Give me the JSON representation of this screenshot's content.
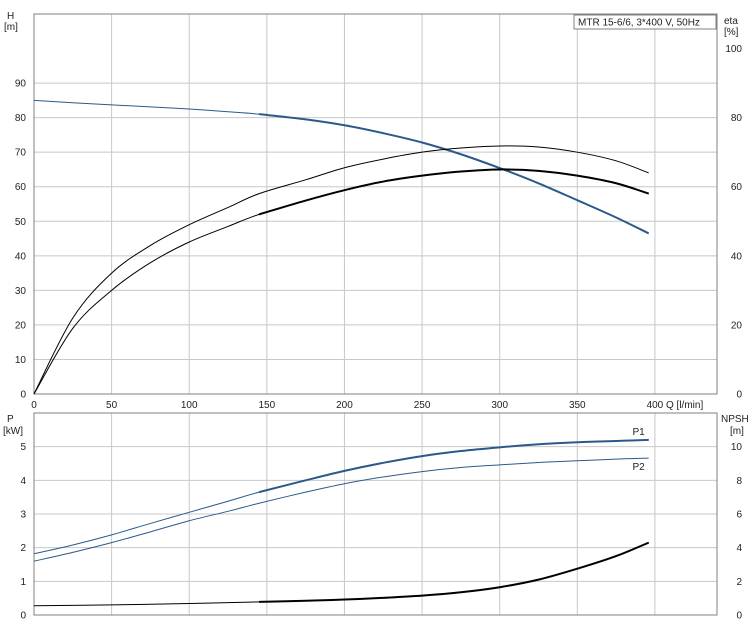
{
  "title_box": "MTR 15-6/6, 3*400 V, 50Hz",
  "colors": {
    "blue": "#2b5a8a",
    "black": "#000000",
    "grid": "#c8c8c8"
  },
  "chart_data": [
    {
      "type": "line",
      "name": "upper",
      "left_axis": {
        "label_line1": "H",
        "label_line2": "[m]",
        "ticks": [
          "0",
          "10",
          "20",
          "30",
          "40",
          "50",
          "60",
          "70",
          "80",
          "90"
        ],
        "range": [
          0,
          110
        ]
      },
      "right_axis": {
        "label_line1": "eta",
        "label_line2": "[%]",
        "ticks": [
          "0",
          "20",
          "40",
          "60",
          "80",
          "100"
        ],
        "range": [
          0,
          110
        ]
      },
      "x_axis": {
        "label": "Q [l/min]",
        "ticks": [
          "0",
          "50",
          "100",
          "150",
          "200",
          "250",
          "300",
          "350",
          "400"
        ],
        "range": [
          0,
          440
        ]
      },
      "series": [
        {
          "id": "H",
          "axis": "left",
          "color": "#2b5a8a",
          "x": [
            0,
            25,
            50,
            75,
            100,
            125,
            145,
            175,
            200,
            225,
            250,
            275,
            300,
            325,
            350,
            375,
            396
          ],
          "y": [
            85,
            84.3,
            83.7,
            83.1,
            82.5,
            81.7,
            81.0,
            79.5,
            77.8,
            75.5,
            72.8,
            69.4,
            65.4,
            61.0,
            56.1,
            51.1,
            46.5
          ],
          "bold_from": 145
        },
        {
          "id": "eta-upper",
          "axis": "right",
          "color": "#000000",
          "x": [
            0,
            25,
            50,
            75,
            100,
            125,
            145,
            175,
            200,
            225,
            250,
            275,
            300,
            325,
            350,
            375,
            396
          ],
          "y": [
            0,
            22,
            35,
            43,
            49,
            54,
            58,
            62,
            65.5,
            68,
            70,
            71.2,
            71.8,
            71.5,
            70,
            67.5,
            64
          ],
          "bold_from": 9999
        },
        {
          "id": "eta-lower",
          "axis": "right",
          "color": "#000000",
          "x": [
            0,
            25,
            50,
            75,
            100,
            125,
            145,
            175,
            200,
            225,
            250,
            275,
            300,
            325,
            350,
            375,
            396
          ],
          "y": [
            0,
            19,
            30,
            38,
            44,
            48.5,
            52,
            56,
            59,
            61.5,
            63.2,
            64.4,
            65,
            64.6,
            63.2,
            61,
            58
          ],
          "bold_from": 145
        }
      ]
    },
    {
      "type": "line",
      "name": "lower",
      "left_axis": {
        "label_line1": "P",
        "label_line2": "[kW]",
        "ticks": [
          "0",
          "1",
          "2",
          "3",
          "4",
          "5"
        ],
        "range": [
          0,
          6
        ]
      },
      "right_axis": {
        "label_line1": "NPSH",
        "label_line2": "[m]",
        "ticks": [
          "0",
          "2",
          "4",
          "6",
          "8",
          "10"
        ],
        "range": [
          0,
          12
        ]
      },
      "x_axis": {
        "ticks": [],
        "range": [
          0,
          440
        ]
      },
      "series": [
        {
          "id": "P1",
          "name": "P1",
          "axis": "left",
          "color": "#2b5a8a",
          "x": [
            0,
            25,
            50,
            75,
            100,
            125,
            145,
            175,
            200,
            225,
            250,
            275,
            300,
            325,
            350,
            375,
            396
          ],
          "y": [
            1.82,
            2.08,
            2.38,
            2.72,
            3.05,
            3.38,
            3.65,
            4.0,
            4.28,
            4.52,
            4.72,
            4.87,
            4.98,
            5.07,
            5.13,
            5.17,
            5.2
          ],
          "bold_from": 145
        },
        {
          "id": "P2",
          "name": "P2",
          "axis": "left",
          "color": "#2b5a8a",
          "x": [
            0,
            25,
            50,
            75,
            100,
            125,
            145,
            175,
            200,
            225,
            250,
            275,
            300,
            325,
            350,
            375,
            396
          ],
          "y": [
            1.6,
            1.86,
            2.15,
            2.47,
            2.8,
            3.08,
            3.32,
            3.65,
            3.9,
            4.1,
            4.26,
            4.38,
            4.46,
            4.53,
            4.58,
            4.63,
            4.66
          ],
          "bold_from": 9999
        },
        {
          "id": "NPSH",
          "axis": "right",
          "color": "#000000",
          "x": [
            0,
            50,
            100,
            145,
            175,
            200,
            225,
            250,
            275,
            300,
            325,
            350,
            375,
            396
          ],
          "y": [
            0.55,
            0.6,
            0.68,
            0.78,
            0.85,
            0.92,
            1.02,
            1.15,
            1.35,
            1.65,
            2.1,
            2.75,
            3.5,
            4.3
          ],
          "bold_from": 145
        }
      ]
    }
  ]
}
